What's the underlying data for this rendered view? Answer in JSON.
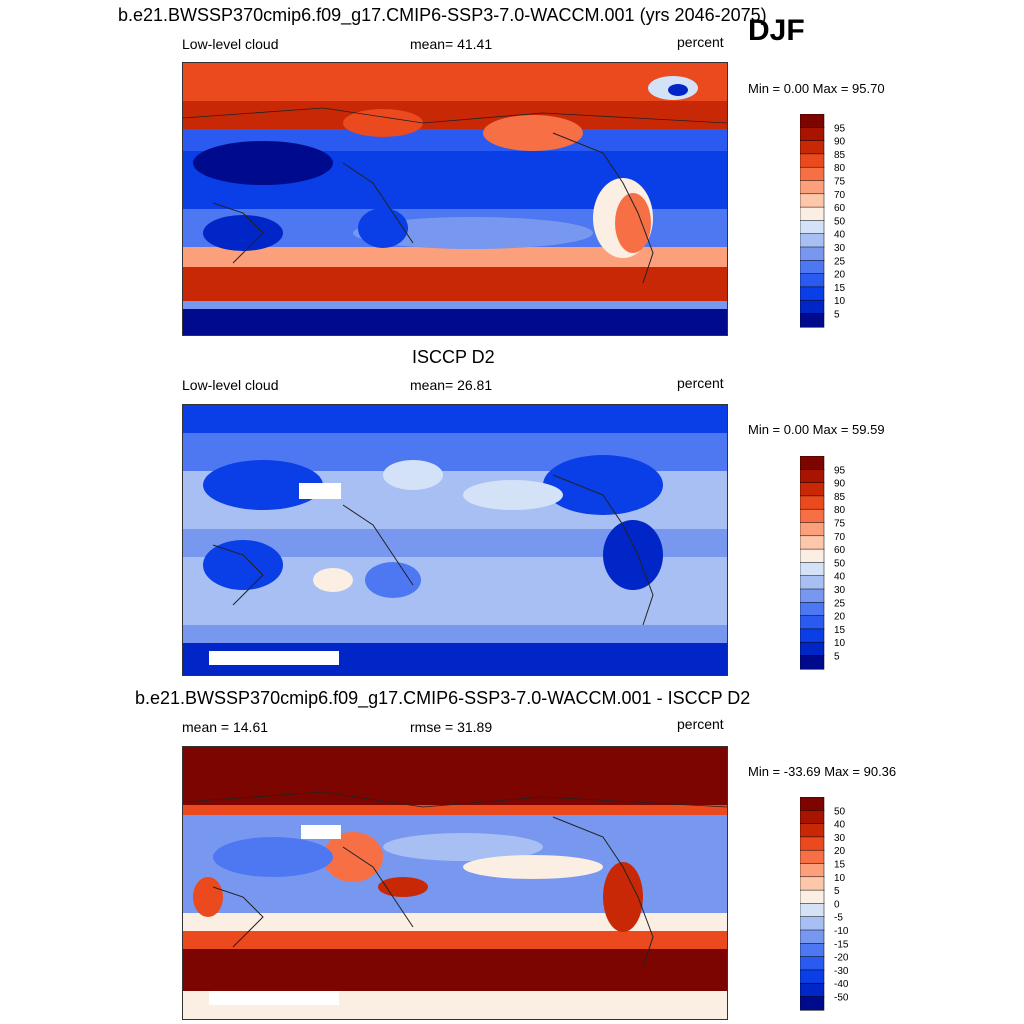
{
  "season": "DJF",
  "colors": {
    "seq": [
      "#000a8c",
      "#0026c8",
      "#0a3ee6",
      "#2a5af0",
      "#4d78f2",
      "#7898f0",
      "#a7bff2",
      "#d4e2f7",
      "#fbeee2",
      "#fcc7aa",
      "#fba07a",
      "#f76f45",
      "#ea4a1e",
      "#c92807",
      "#a81400",
      "#7d0500"
    ],
    "div": [
      "#000a8c",
      "#0026c8",
      "#0a3ee6",
      "#2a5af0",
      "#4d78f2",
      "#7898f0",
      "#a7bff2",
      "#d4e2f7",
      "#fbeee2",
      "#fcc7aa",
      "#fba07a",
      "#f76f45",
      "#ea4a1e",
      "#c92807",
      "#a81400",
      "#7d0500"
    ]
  },
  "panels": [
    {
      "title": "b.e21.BWSSP370cmip6.f09_g17.CMIP6-SSP3-7.0-WACCM.001 (yrs 2046-2075)",
      "left": "Low-level cloud",
      "center": "mean=  41.41",
      "units": "percent",
      "minmax": "Min =   0.00 Max =  95.70",
      "levels": [
        "95",
        "90",
        "85",
        "80",
        "75",
        "70",
        "60",
        "50",
        "40",
        "30",
        "25",
        "20",
        "15",
        "10",
        "5"
      ]
    },
    {
      "title": "ISCCP D2",
      "left": "Low-level cloud",
      "center": "mean=  26.81",
      "units": "percent",
      "minmax": "Min =   0.00 Max =  59.59",
      "levels": [
        "95",
        "90",
        "85",
        "80",
        "75",
        "70",
        "60",
        "50",
        "40",
        "30",
        "25",
        "20",
        "15",
        "10",
        "5"
      ]
    },
    {
      "title": "b.e21.BWSSP370cmip6.f09_g17.CMIP6-SSP3-7.0-WACCM.001 - ISCCP D2",
      "left": "mean =  14.61",
      "center": "rmse =  31.89",
      "units": "percent",
      "minmax": "Min = -33.69 Max =  90.36",
      "levels": [
        "50",
        "40",
        "30",
        "20",
        "15",
        "10",
        "5",
        "0",
        "-5",
        "-10",
        "-15",
        "-20",
        "-30",
        "-40",
        "-50"
      ]
    }
  ]
}
